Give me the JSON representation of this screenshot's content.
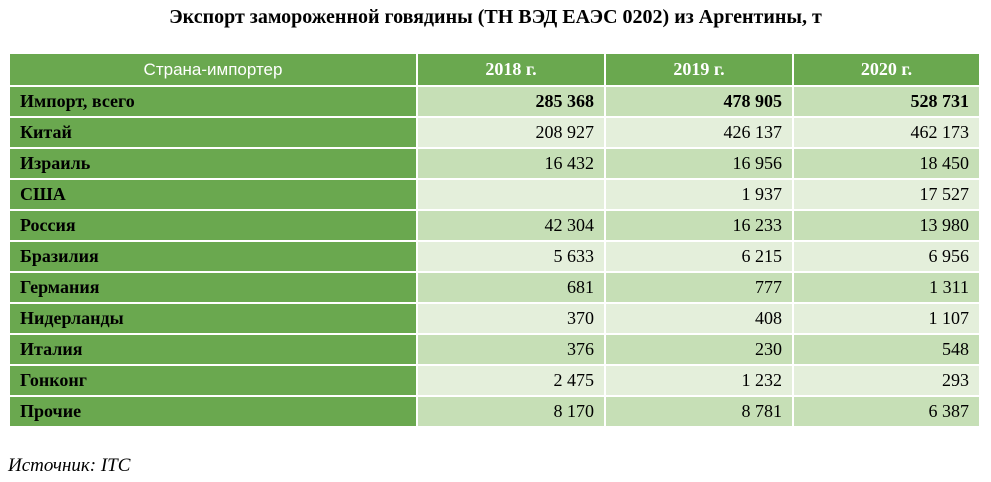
{
  "title": "Экспорт замороженной говядины (ТН ВЭД ЕАЭС 0202) из Аргентины, т",
  "table": {
    "headers": [
      "Страна-импортер",
      "2018 г.",
      "2019 г.",
      "2020 г."
    ],
    "rows": [
      {
        "country": "Импорт, всего",
        "v2018": "285 368",
        "v2019": "478 905",
        "v2020": "528 731"
      },
      {
        "country": "Китай",
        "v2018": "208 927",
        "v2019": "426 137",
        "v2020": "462 173"
      },
      {
        "country": "Израиль",
        "v2018": "16 432",
        "v2019": "16 956",
        "v2020": "18 450"
      },
      {
        "country": "США",
        "v2018": "",
        "v2019": "1 937",
        "v2020": "17 527"
      },
      {
        "country": "Россия",
        "v2018": "42 304",
        "v2019": "16 233",
        "v2020": "13 980"
      },
      {
        "country": "Бразилия",
        "v2018": "5 633",
        "v2019": "6 215",
        "v2020": "6 956"
      },
      {
        "country": "Германия",
        "v2018": "681",
        "v2019": "777",
        "v2020": "1 311"
      },
      {
        "country": "Нидерланды",
        "v2018": "370",
        "v2019": "408",
        "v2020": "1 107"
      },
      {
        "country": "Италия",
        "v2018": "376",
        "v2019": "230",
        "v2020": "548"
      },
      {
        "country": "Гонконг",
        "v2018": "2 475",
        "v2019": "1 232",
        "v2020": "293"
      },
      {
        "country": "Прочие",
        "v2018": "8 170",
        "v2019": "8 781",
        "v2020": "6 387"
      }
    ]
  },
  "source": "Источник: ITC",
  "colors": {
    "header_green": "#6aa84f",
    "row_light": "#c6dfb6",
    "row_pale": "#e4efdb"
  }
}
